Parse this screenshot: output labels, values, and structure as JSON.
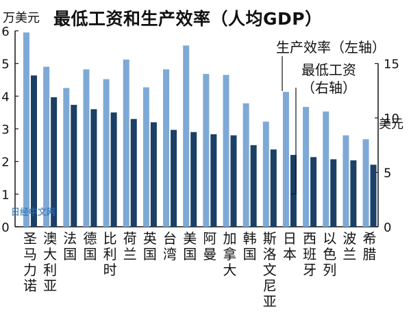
{
  "chart_data": {
    "type": "bar",
    "title": "最低工资和生产效率（人均GDP）",
    "left_axis": {
      "unit_label": "万美元",
      "ylim": [
        0,
        6
      ],
      "ticks": [
        "0",
        "1",
        "2",
        "3",
        "4",
        "5",
        "6"
      ]
    },
    "right_axis": {
      "unit_label": "美元",
      "ylim": [
        0,
        18
      ],
      "ticks": [
        "0",
        "5",
        "10",
        "15"
      ]
    },
    "categories": [
      "圣马力诺",
      "澳大利亚",
      "法国",
      "德国",
      "比利时",
      "荷兰",
      "英国",
      "台湾",
      "美国",
      "阿曼",
      "加拿大",
      "韩国",
      "斯洛文尼亚",
      "日本",
      "西班牙",
      "以色列",
      "波兰",
      "希腊"
    ],
    "series": [
      {
        "name": "生产效率（左轴）",
        "axis": "left",
        "color": "#7ea9d6",
        "values": [
          5.95,
          4.9,
          4.25,
          4.82,
          4.52,
          5.12,
          4.27,
          4.82,
          5.55,
          4.68,
          4.65,
          3.78,
          3.22,
          4.13,
          3.67,
          3.53,
          2.8,
          2.68
        ]
      },
      {
        "name": "最低工资（右轴）",
        "axis": "right",
        "color": "#1c3f66",
        "values": [
          13.9,
          11.9,
          11.2,
          10.8,
          10.5,
          9.9,
          9.6,
          8.9,
          8.7,
          8.5,
          8.4,
          7.5,
          7.1,
          6.6,
          6.4,
          6.2,
          6.1,
          5.7
        ]
      }
    ],
    "legend": [
      {
        "label": "生产效率（左轴）"
      },
      {
        "label": "最低工资",
        "label2": "（右轴）"
      }
    ],
    "watermark": "日经中文网",
    "grid": false
  }
}
